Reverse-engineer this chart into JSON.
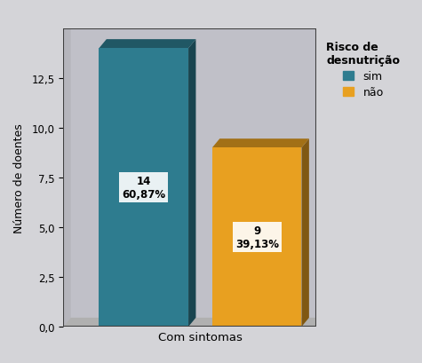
{
  "bars": [
    {
      "label": "sim",
      "value": 14,
      "pct": "60,87%",
      "color": "#2e7c8f"
    },
    {
      "label": "não",
      "value": 9,
      "pct": "39,13%",
      "color": "#e8a020"
    }
  ],
  "ylabel": "Número de doentes",
  "xlabel": "Com sintomas",
  "ylim": [
    0,
    15
  ],
  "yticks": [
    0.0,
    2.5,
    5.0,
    7.5,
    10.0,
    12.5
  ],
  "legend_title": "Risco de\ndesnutrição",
  "background_plot": "#c0c0c8",
  "background_fig": "#d4d4d8",
  "annotation_fontsize": 8.5,
  "ylabel_fontsize": 9,
  "xlabel_fontsize": 9.5,
  "tick_fontsize": 8.5,
  "legend_fontsize": 9
}
